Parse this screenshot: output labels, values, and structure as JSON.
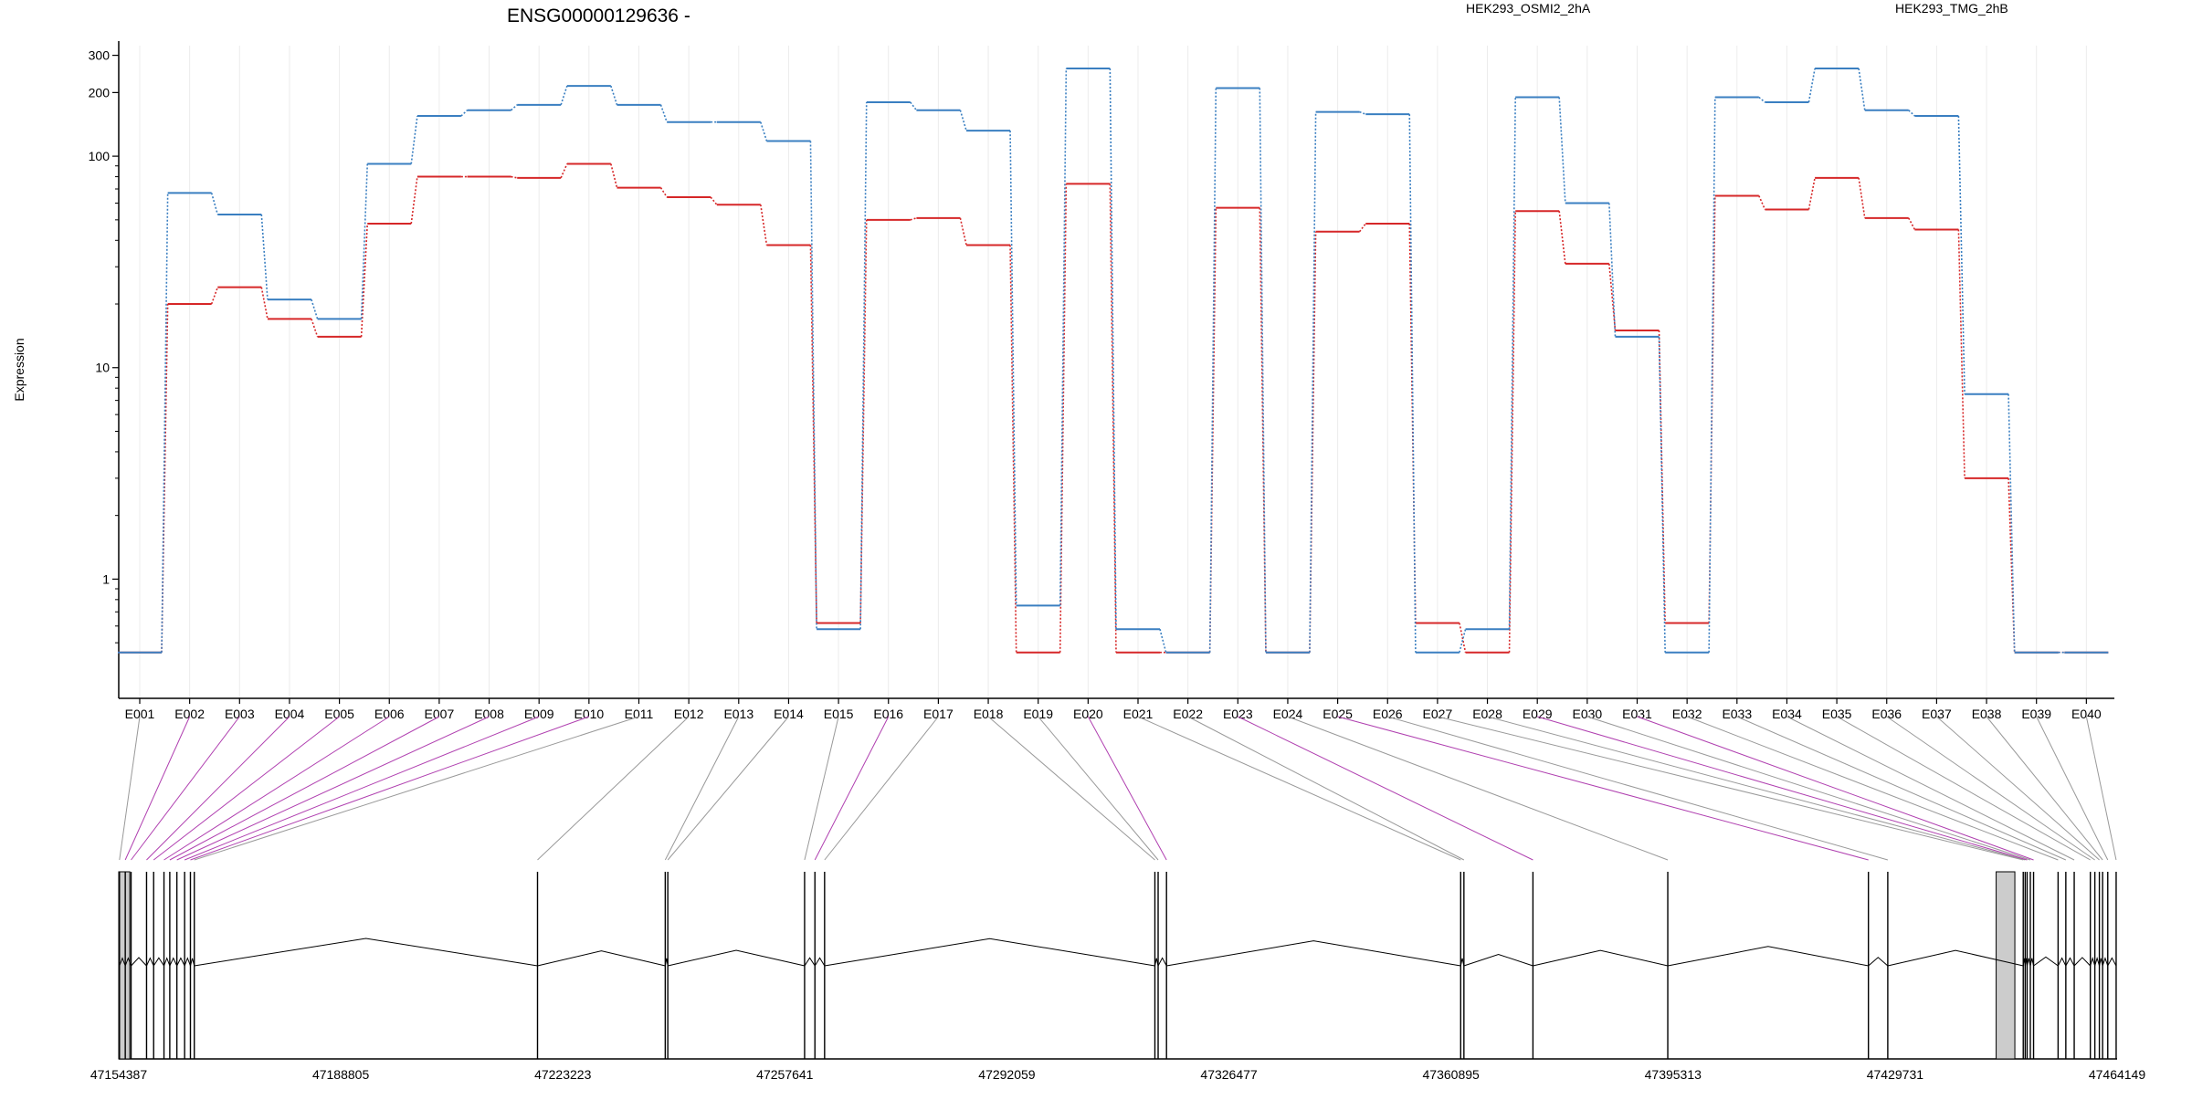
{
  "chart_data": {
    "type": "line",
    "title": "ENSG00000129636 -",
    "xlabel": "",
    "ylabel": "Expression",
    "y_scale": "log",
    "ylim": [
      0.35,
      340
    ],
    "y_ticks": [
      1,
      10,
      100,
      200,
      300
    ],
    "y_tick_labels": [
      "1",
      "10",
      "100",
      "200",
      "300"
    ],
    "grid": "vertical-light",
    "legend": "top-right",
    "categories": [
      "E001",
      "E002",
      "E003",
      "E004",
      "E005",
      "E006",
      "E007",
      "E008",
      "E009",
      "E010",
      "E011",
      "E012",
      "E013",
      "E014",
      "E015",
      "E016",
      "E017",
      "E018",
      "E019",
      "E020",
      "E021",
      "E022",
      "E023",
      "E024",
      "E025",
      "E026",
      "E027",
      "E028",
      "E029",
      "E030",
      "E031",
      "E032",
      "E033",
      "E034",
      "E035",
      "E036",
      "E037",
      "E038",
      "E039",
      "E040"
    ],
    "series": [
      {
        "name": "HEK293_OSMI2_2hA",
        "color": "#d62728",
        "values": [
          0.45,
          20,
          24,
          17,
          14,
          48,
          80,
          80,
          79,
          92,
          71,
          64,
          59,
          38,
          0.62,
          50,
          51,
          38,
          0.45,
          74,
          0.45,
          0.45,
          57,
          0.45,
          44,
          48,
          0.62,
          0.45,
          55,
          31,
          15,
          0.62,
          65,
          56,
          79,
          51,
          45,
          3,
          0.45,
          0.45
        ]
      },
      {
        "name": "HEK293_TMG_2hB",
        "color": "#3a7fc1",
        "values": [
          0.45,
          67,
          53,
          21,
          17,
          92,
          155,
          165,
          175,
          215,
          175,
          145,
          145,
          118,
          0.58,
          180,
          165,
          132,
          0.75,
          260,
          0.58,
          0.45,
          210,
          0.45,
          162,
          158,
          0.45,
          0.58,
          190,
          60,
          14,
          0.45,
          190,
          180,
          260,
          165,
          155,
          7.5,
          0.45,
          0.45
        ]
      }
    ],
    "genome": {
      "start_label": "47154387",
      "end_label": "47464149",
      "start": 47154387,
      "end": 47464149,
      "tick_values": [
        47154387,
        47188805,
        47223223,
        47257641,
        47292059,
        47326477,
        47360895,
        47395313,
        47429731,
        47464149
      ],
      "tick_labels": [
        "47154387",
        "47188805",
        "47223223",
        "47257641",
        "47292059",
        "47326477",
        "47360895",
        "47395313",
        "47429731",
        "47464149"
      ],
      "exon_positions": [
        47154500,
        47155400,
        47156300,
        47158700,
        47159800,
        47161400,
        47162300,
        47163400,
        47164600,
        47165500,
        47166100,
        47219300,
        47239100,
        47239500,
        47260700,
        47262300,
        47263800,
        47315000,
        47315500,
        47316800,
        47362400,
        47362900,
        47373600,
        47394500,
        47425600,
        47428600,
        47449600,
        47449900,
        47450200,
        47450700,
        47451200,
        47455000,
        47456200,
        47457500,
        47460000,
        47460700,
        47461400,
        47461900,
        47462700,
        47464000
      ],
      "highlighted_exons": [
        "E002",
        "E003",
        "E004",
        "E005",
        "E006",
        "E007",
        "E008",
        "E009",
        "E010",
        "E016",
        "E020",
        "E023",
        "E025",
        "E029",
        "E031"
      ],
      "grey_blocks": [
        [
          47154387,
          47156100
        ],
        [
          47445400,
          47448300
        ]
      ],
      "colors": {
        "link": "#999999",
        "link_highlight": "#b040b0",
        "block": "#cccccc",
        "line": "#000000"
      }
    }
  }
}
